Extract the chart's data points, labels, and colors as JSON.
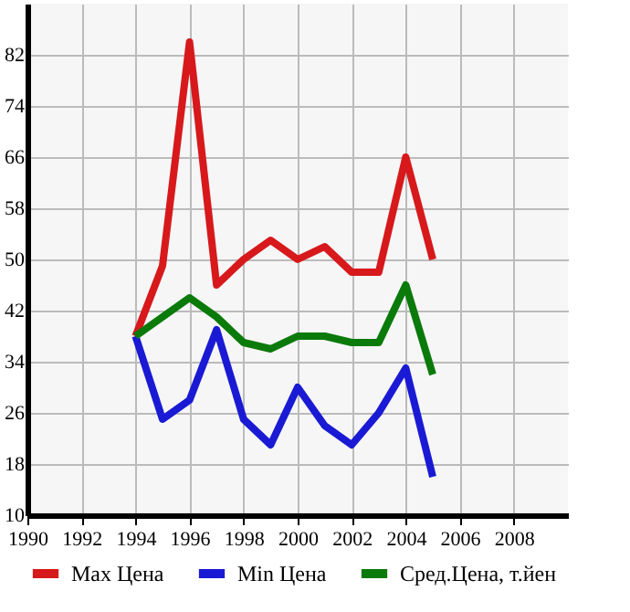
{
  "chart_data": {
    "type": "line",
    "x": [
      1994,
      1995,
      1996,
      1997,
      1998,
      1999,
      2000,
      2001,
      2002,
      2003,
      2004,
      2005
    ],
    "series": [
      {
        "name": "Max Цена",
        "color": "#d7191c",
        "values": [
          38,
          49,
          84,
          46,
          50,
          53,
          50,
          52,
          48,
          48,
          66,
          50
        ]
      },
      {
        "name": "Min Цена",
        "color": "#1a1ad4",
        "values": [
          38,
          25,
          28,
          39,
          25,
          21,
          30,
          24,
          21,
          26,
          33,
          16
        ]
      },
      {
        "name": "Сред.Цена, т.йен",
        "color": "#0a7a0a",
        "values": [
          38,
          41,
          44,
          41,
          37,
          36,
          38,
          38,
          37,
          37,
          46,
          32
        ]
      }
    ],
    "xlim": [
      1990,
      2010
    ],
    "xticks": [
      1990,
      1992,
      1994,
      1996,
      1998,
      2000,
      2002,
      2004,
      2006,
      2008
    ],
    "ylim": [
      10,
      90
    ],
    "yticks": [
      10,
      18,
      26,
      34,
      42,
      50,
      58,
      66,
      74,
      82
    ],
    "grid": true,
    "legend": "bottom",
    "marker": "none",
    "line_style": "solid"
  }
}
